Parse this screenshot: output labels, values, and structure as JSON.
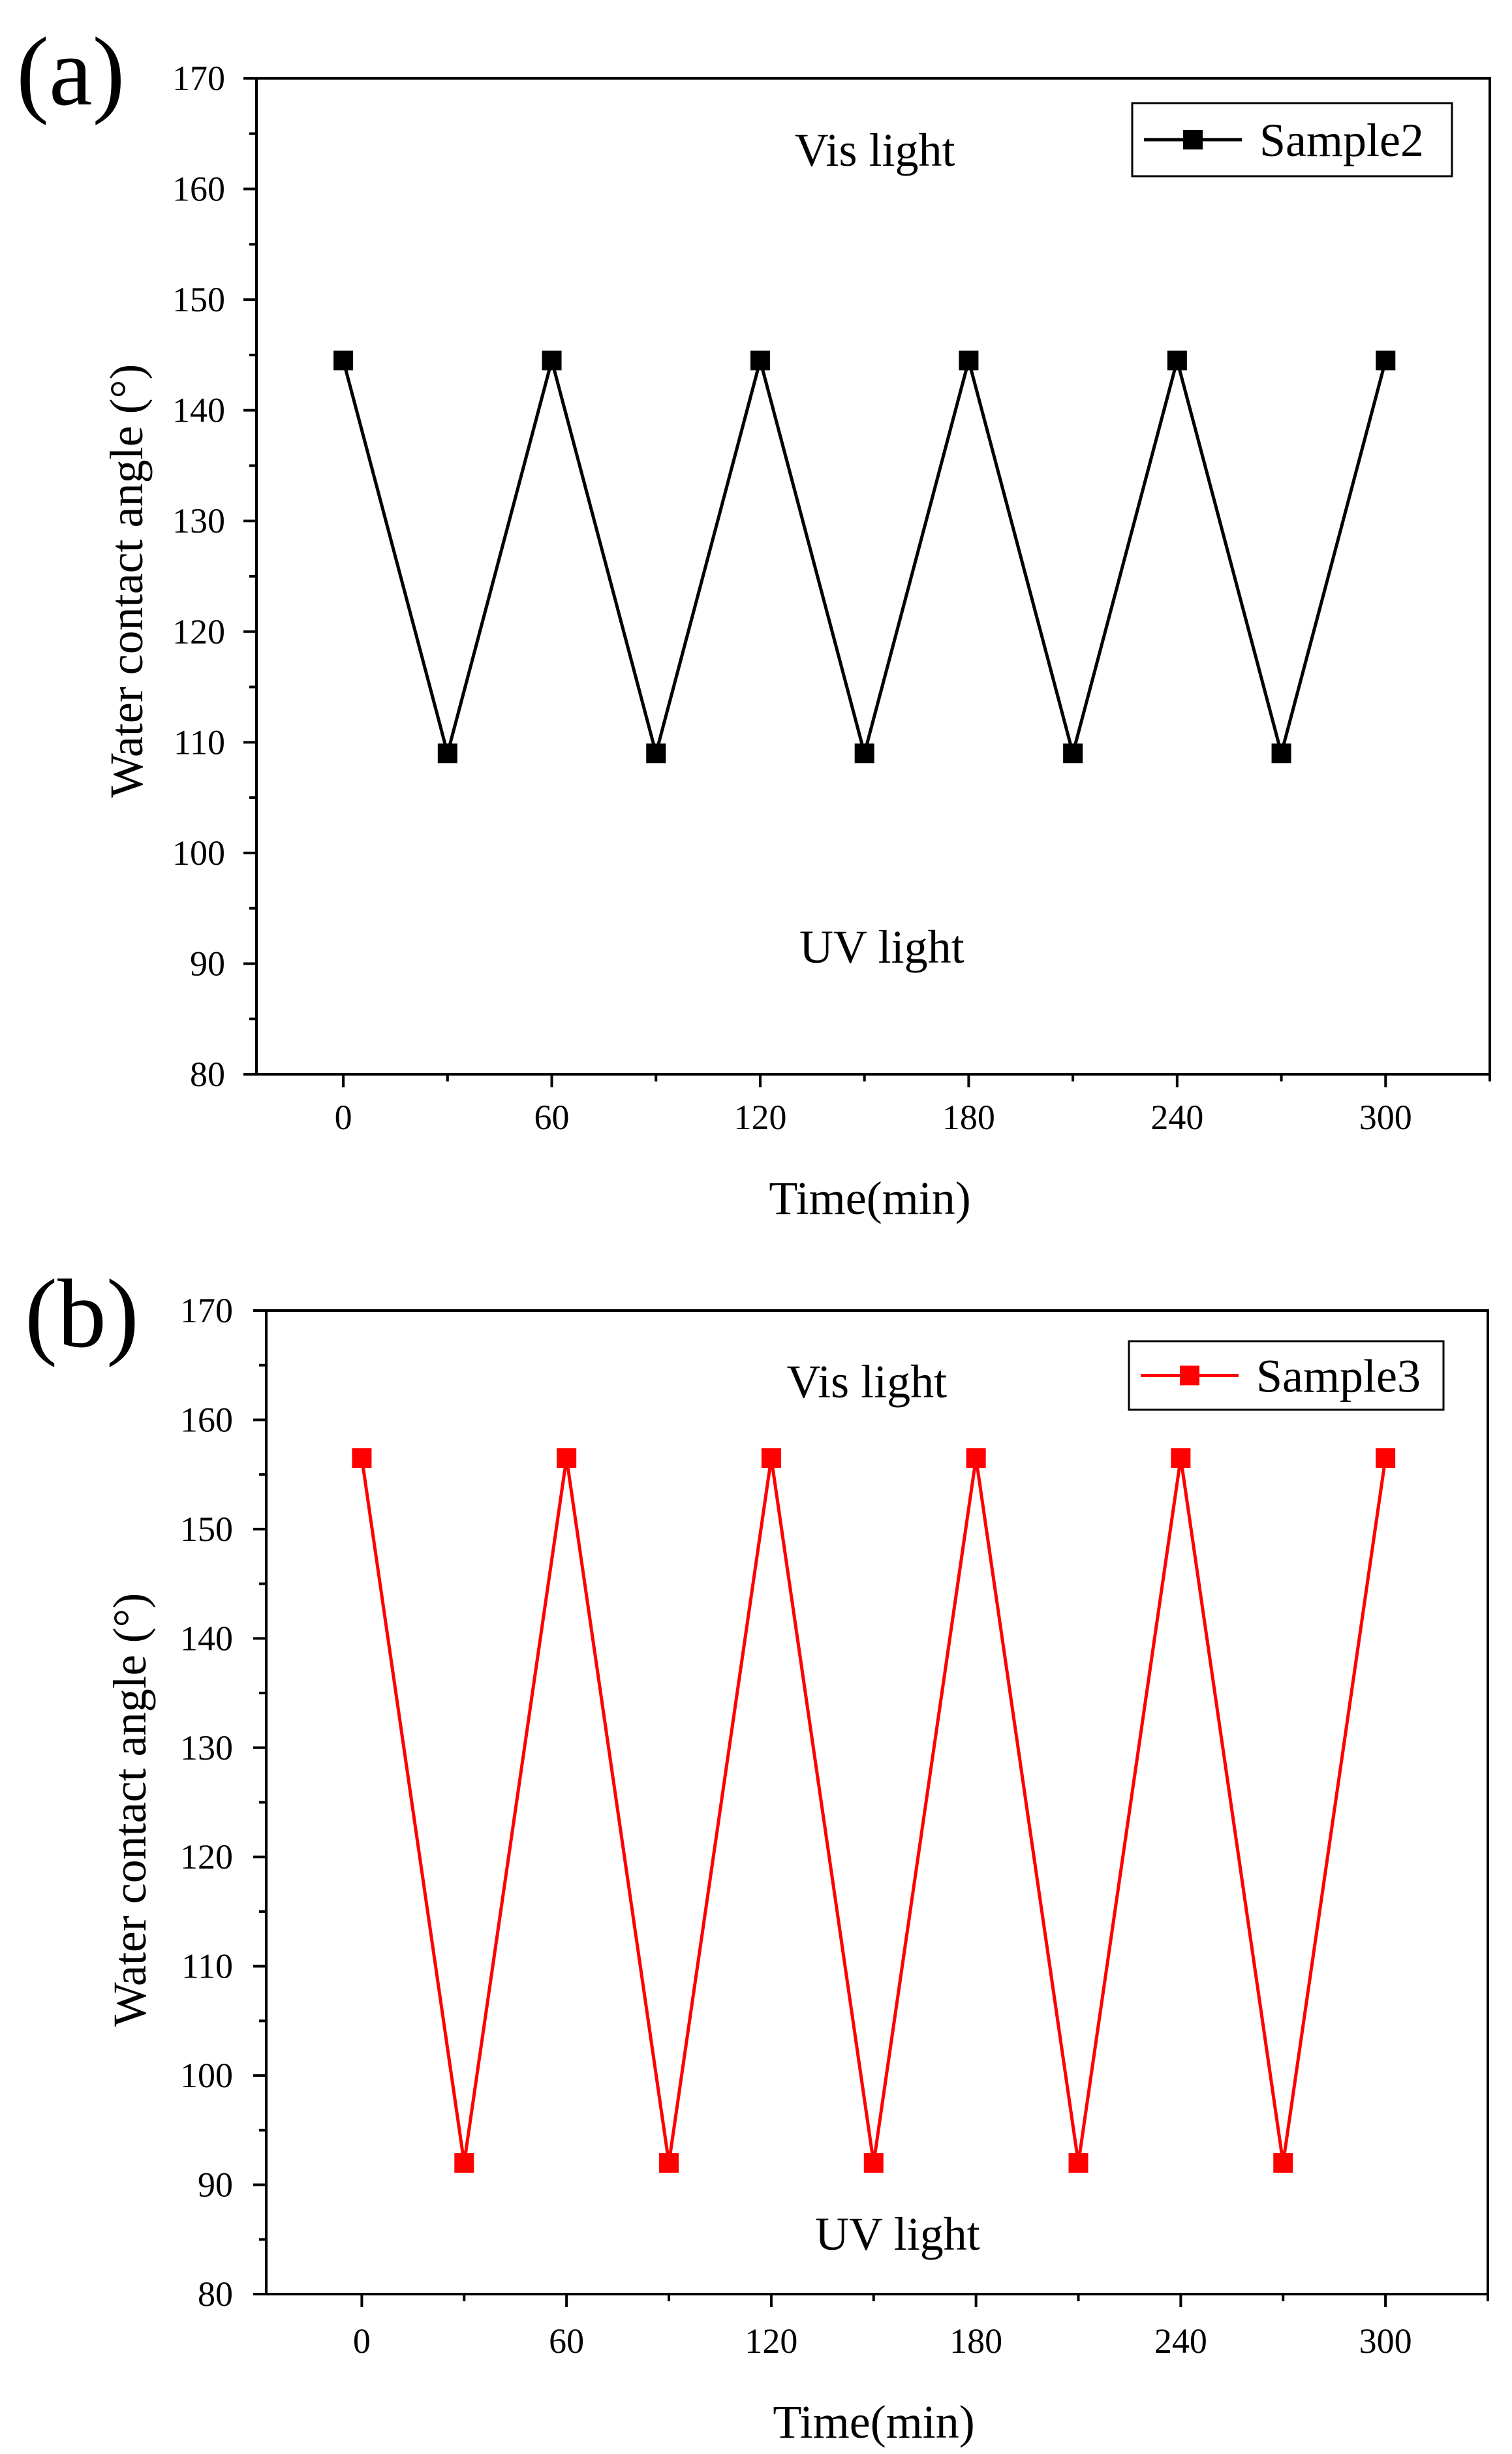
{
  "chart_data": [
    {
      "type": "line",
      "panel_label": "(a)",
      "xlabel": "Time(min)",
      "ylabel": "Water contact angle (°)",
      "xlim": [
        -25,
        330
      ],
      "ylim": [
        80,
        170
      ],
      "xticks": [
        0,
        60,
        120,
        180,
        240,
        300
      ],
      "yticks": [
        80,
        90,
        100,
        110,
        120,
        130,
        140,
        150,
        160,
        170
      ],
      "legend_position": "top-right",
      "annotations": [
        {
          "text": "Vis light",
          "x": 153,
          "y": 163.5
        },
        {
          "text": "UV light",
          "x": 155,
          "y": 91.5
        }
      ],
      "series": [
        {
          "name": "Sample2",
          "color": "#000000",
          "marker": "square",
          "x": [
            0,
            30,
            60,
            90,
            120,
            150,
            180,
            210,
            240,
            270,
            300
          ],
          "y": [
            144.5,
            109,
            144.5,
            109,
            144.5,
            109,
            144.5,
            109,
            144.5,
            109,
            144.5
          ]
        }
      ]
    },
    {
      "type": "line",
      "panel_label": "(b)",
      "xlabel": "Time(min)",
      "ylabel": "Water contact angle (°)",
      "xlim": [
        -28,
        330
      ],
      "ylim": [
        80,
        170
      ],
      "xticks": [
        0,
        60,
        120,
        180,
        240,
        300
      ],
      "yticks": [
        80,
        90,
        100,
        110,
        120,
        130,
        140,
        150,
        160,
        170
      ],
      "legend_position": "top-right",
      "annotations": [
        {
          "text": "Vis light",
          "x": 148,
          "y": 163.5
        },
        {
          "text": "UV light",
          "x": 157,
          "y": 85.5
        }
      ],
      "series": [
        {
          "name": "Sample3",
          "color": "#ff0000",
          "marker": "square",
          "x": [
            0,
            30,
            60,
            90,
            120,
            150,
            180,
            210,
            240,
            270,
            300
          ],
          "y": [
            156.5,
            92,
            156.5,
            92,
            156.5,
            92,
            156.5,
            92,
            156.5,
            92,
            156.5
          ]
        }
      ]
    }
  ]
}
